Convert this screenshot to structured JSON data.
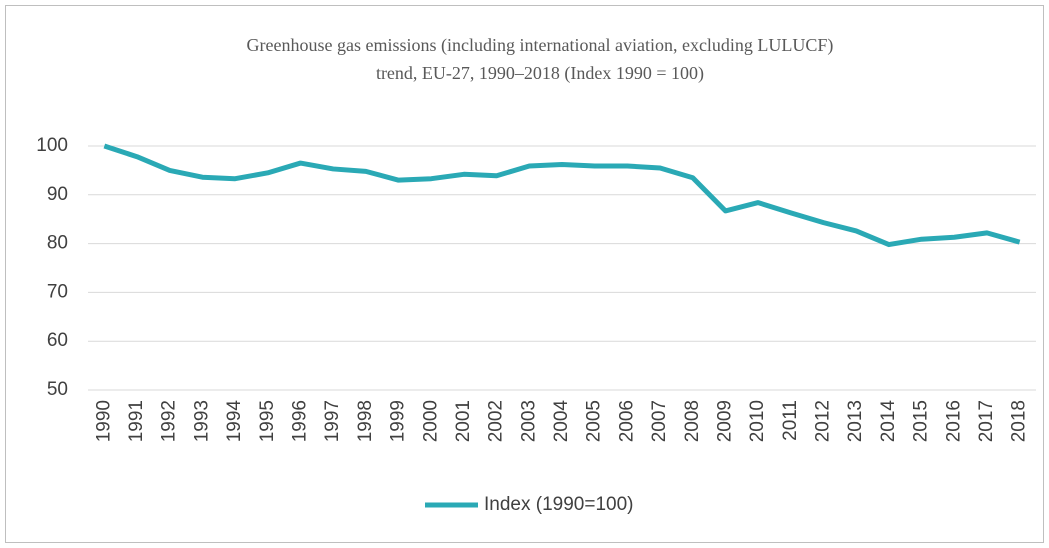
{
  "chart_data": {
    "type": "line",
    "title": [
      "Greenhouse gas emissions (including international  aviation, excluding LULUCF)",
      "trend, EU-27, 1990–2018 (Index 1990 = 100)"
    ],
    "categories": [
      "1990",
      "1991",
      "1992",
      "1993",
      "1994",
      "1995",
      "1996",
      "1997",
      "1998",
      "1999",
      "2000",
      "2001",
      "2002",
      "2003",
      "2004",
      "2005",
      "2006",
      "2007",
      "2008",
      "2009",
      "2010",
      "2011",
      "2012",
      "2013",
      "2014",
      "2015",
      "2016",
      "2017",
      "2018"
    ],
    "series": [
      {
        "name": "Index (1990=100)",
        "color": "#2aa9b5",
        "values": [
          100,
          97.8,
          95,
          93.6,
          93.3,
          94.5,
          96.5,
          95.3,
          94.8,
          93,
          93.3,
          94.2,
          93.9,
          95.9,
          96.2,
          95.9,
          95.9,
          95.5,
          93.5,
          86.7,
          88.4,
          86.3,
          84.3,
          82.6,
          79.8,
          80.9,
          81.3,
          82.2,
          80.3
        ]
      }
    ],
    "ylim": [
      50,
      100
    ],
    "yticks": [
      50,
      60,
      70,
      80,
      90,
      100
    ],
    "grid": true,
    "legend": "bottom"
  }
}
